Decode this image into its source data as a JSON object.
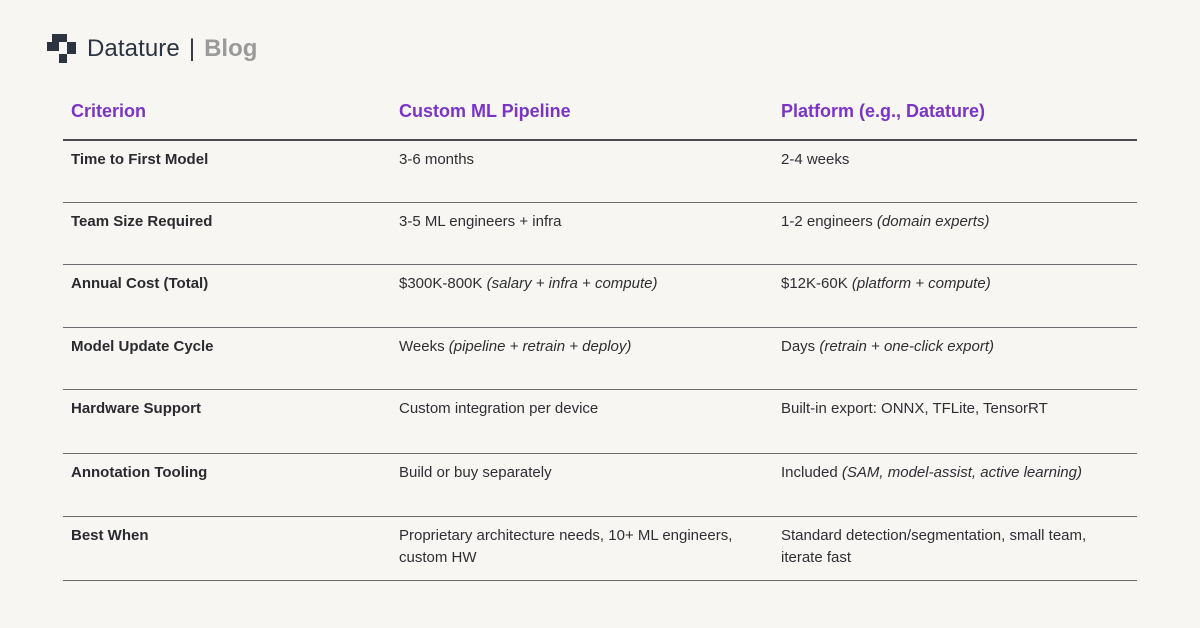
{
  "brand": {
    "name": "Datature",
    "separator": "|",
    "section": "Blog",
    "logo_icon": "datature-logo-icon"
  },
  "table": {
    "headers": [
      "Criterion",
      "Custom ML Pipeline",
      "Platform (e.g., Datature)"
    ],
    "rows": [
      {
        "criterion": "Time to First Model",
        "custom": {
          "text": "3-6 months",
          "note": ""
        },
        "platform": {
          "text": "2-4 weeks",
          "note": ""
        }
      },
      {
        "criterion": "Team Size Required",
        "custom": {
          "text": "3-5 ML engineers + infra",
          "note": ""
        },
        "platform": {
          "text": "1-2 engineers ",
          "note": "(domain experts)"
        }
      },
      {
        "criterion": "Annual Cost (Total)",
        "custom": {
          "text": "$300K-800K ",
          "note": "(salary + infra + compute)"
        },
        "platform": {
          "text": "$12K-60K ",
          "note": "(platform + compute)"
        }
      },
      {
        "criterion": "Model Update Cycle",
        "custom": {
          "text": "Weeks ",
          "note": "(pipeline + retrain + deploy)"
        },
        "platform": {
          "text": "Days ",
          "note": "(retrain + one-click export)"
        }
      },
      {
        "criterion": "Hardware Support",
        "custom": {
          "text": "Custom integration per device",
          "note": ""
        },
        "platform": {
          "text": "Built-in export: ONNX, TFLite, TensorRT",
          "note": ""
        }
      },
      {
        "criterion": "Annotation Tooling",
        "custom": {
          "text": "Build or buy separately",
          "note": ""
        },
        "platform": {
          "text": "Included ",
          "note": "(SAM, model-assist, active learning)"
        }
      },
      {
        "criterion": "Best When",
        "custom": {
          "text": "Proprietary architecture needs, 10+ ML engineers, custom HW",
          "note": ""
        },
        "platform": {
          "text": "Standard detection/segmentation, small team, iterate fast",
          "note": ""
        }
      }
    ]
  }
}
